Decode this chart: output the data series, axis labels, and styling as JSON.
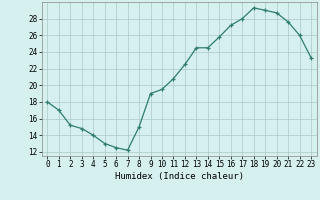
{
  "x": [
    0,
    1,
    2,
    3,
    4,
    5,
    6,
    7,
    8,
    9,
    10,
    11,
    12,
    13,
    14,
    15,
    16,
    17,
    18,
    19,
    20,
    21,
    22,
    23
  ],
  "y": [
    18.0,
    17.0,
    15.2,
    14.8,
    14.0,
    13.0,
    12.5,
    12.2,
    15.0,
    19.0,
    19.5,
    20.8,
    22.5,
    24.5,
    24.5,
    25.8,
    27.2,
    28.0,
    29.3,
    29.0,
    28.7,
    27.6,
    26.0,
    23.3
  ],
  "xlabel": "Humidex (Indice chaleur)",
  "ylabel": "",
  "xlim": [
    -0.5,
    23.5
  ],
  "ylim": [
    11.5,
    30.0
  ],
  "yticks": [
    12,
    14,
    16,
    18,
    20,
    22,
    24,
    26,
    28
  ],
  "xticks": [
    0,
    1,
    2,
    3,
    4,
    5,
    6,
    7,
    8,
    9,
    10,
    11,
    12,
    13,
    14,
    15,
    16,
    17,
    18,
    19,
    20,
    21,
    22,
    23
  ],
  "line_color": "#2e7d6e",
  "marker": "+",
  "bg_color": "#d6f0f0",
  "grid_color": "#adc8c8",
  "label_fontsize": 6.5,
  "tick_fontsize": 5.5,
  "line_width": 0.9,
  "marker_size": 3.5,
  "marker_edge_width": 0.9
}
